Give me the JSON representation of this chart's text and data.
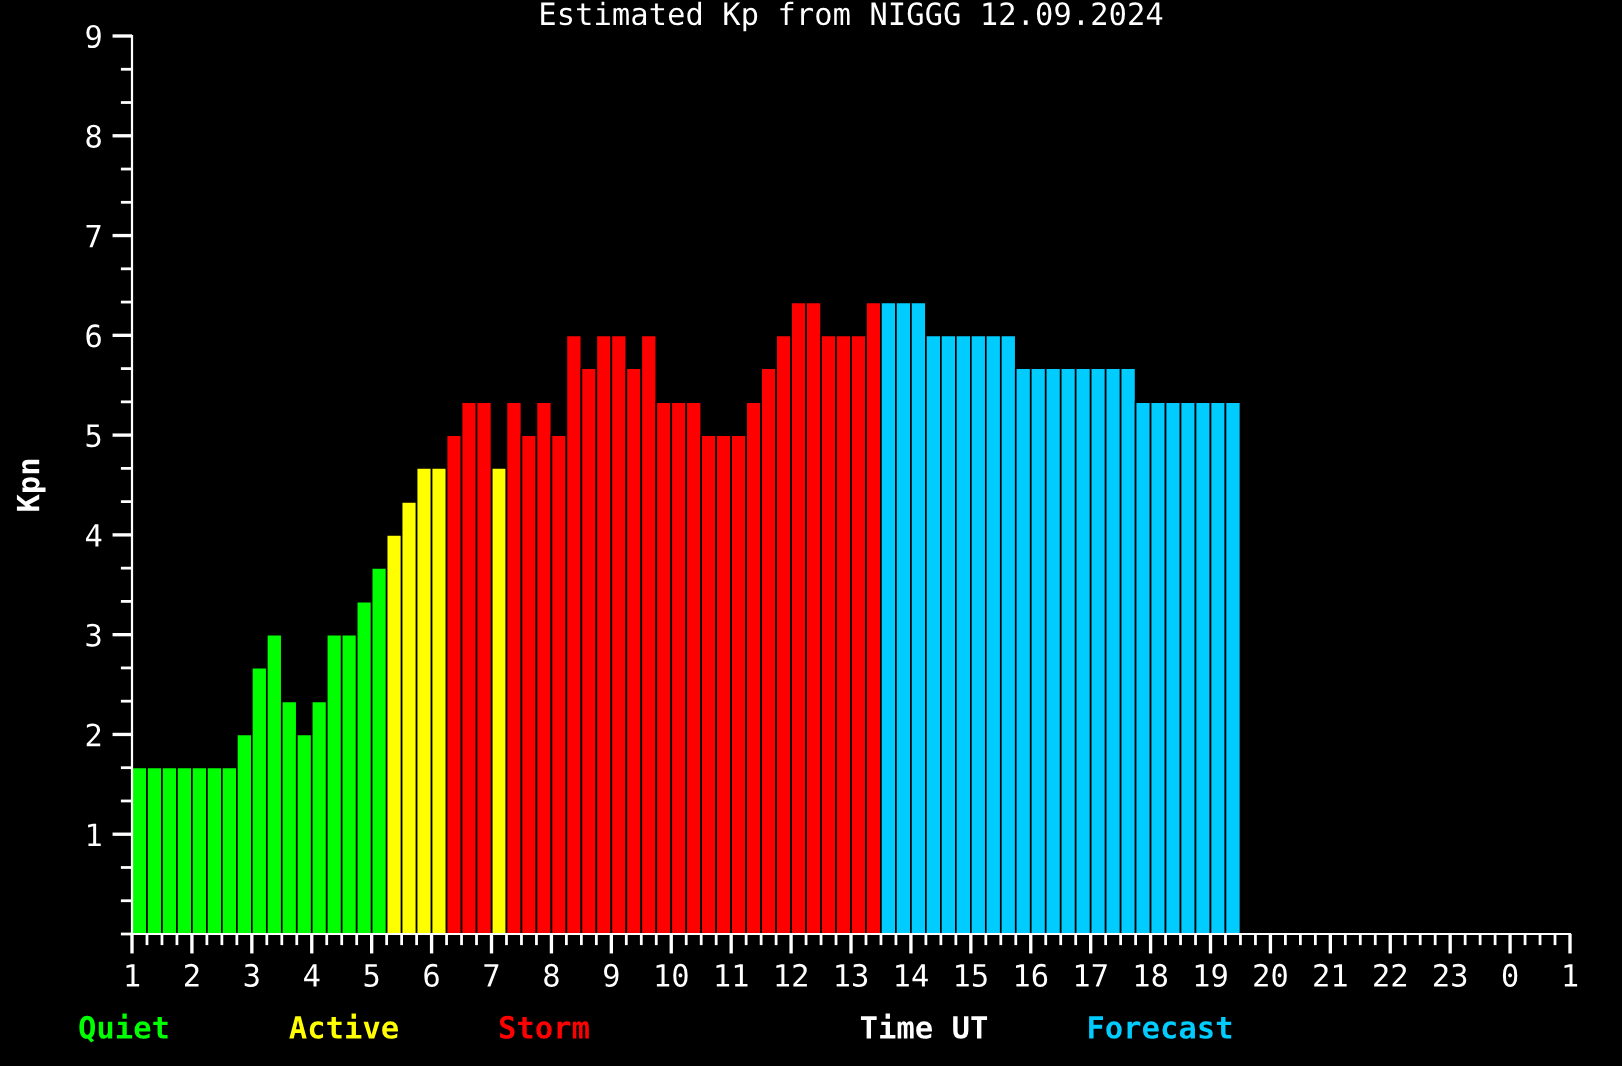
{
  "chart_data": {
    "type": "bar",
    "title": "Estimated Kp from NIGGG 12.09.2024",
    "xlabel": "Time UT",
    "ylabel": "Kpn",
    "xlim": [
      "2024-09-12T01:00",
      "2024-09-13T01:00"
    ],
    "xticks": [
      {
        "value": "2024-09-12T01:00",
        "label": "1"
      },
      {
        "value": "2024-09-12T02:00",
        "label": "2"
      },
      {
        "value": "2024-09-12T03:00",
        "label": "3"
      },
      {
        "value": "2024-09-12T04:00",
        "label": "4"
      },
      {
        "value": "2024-09-12T05:00",
        "label": "5"
      },
      {
        "value": "2024-09-12T06:00",
        "label": "6"
      },
      {
        "value": "2024-09-12T07:00",
        "label": "7"
      },
      {
        "value": "2024-09-12T08:00",
        "label": "8"
      },
      {
        "value": "2024-09-12T09:00",
        "label": "9"
      },
      {
        "value": "2024-09-12T10:00",
        "label": "10"
      },
      {
        "value": "2024-09-12T11:00",
        "label": "11"
      },
      {
        "value": "2024-09-12T12:00",
        "label": "12"
      },
      {
        "value": "2024-09-12T13:00",
        "label": "13"
      },
      {
        "value": "2024-09-12T14:00",
        "label": "14"
      },
      {
        "value": "2024-09-12T15:00",
        "label": "15"
      },
      {
        "value": "2024-09-12T16:00",
        "label": "16"
      },
      {
        "value": "2024-09-12T17:00",
        "label": "17"
      },
      {
        "value": "2024-09-12T18:00",
        "label": "18"
      },
      {
        "value": "2024-09-12T19:00",
        "label": "19"
      },
      {
        "value": "2024-09-12T20:00",
        "label": "20"
      },
      {
        "value": "2024-09-12T21:00",
        "label": "21"
      },
      {
        "value": "2024-09-12T22:00",
        "label": "22"
      },
      {
        "value": "2024-09-12T23:00",
        "label": "23"
      },
      {
        "value": "2024-09-13T00:00",
        "label": "0"
      },
      {
        "value": "2024-09-13T01:00",
        "label": "1"
      }
    ],
    "ylim": [
      0,
      9
    ],
    "yticks": [
      1,
      2,
      3,
      4,
      5,
      6,
      7,
      8,
      9
    ],
    "legend": "bottom",
    "series": [
      {
        "name": "Quiet",
        "color": "#00ff00",
        "x": [
          "2024-09-12T01:00",
          "2024-09-12T01:15",
          "2024-09-12T01:30",
          "2024-09-12T01:45",
          "2024-09-12T02:00",
          "2024-09-12T02:15",
          "2024-09-12T02:30",
          "2024-09-12T02:45",
          "2024-09-12T03:00",
          "2024-09-12T03:15",
          "2024-09-12T03:30",
          "2024-09-12T03:45",
          "2024-09-12T04:00",
          "2024-09-12T04:15",
          "2024-09-12T04:30",
          "2024-09-12T04:45",
          "2024-09-12T05:00"
        ],
        "values": [
          1.67,
          1.67,
          1.67,
          1.67,
          1.67,
          1.67,
          1.67,
          2,
          2.67,
          3,
          2.33,
          2,
          2.33,
          3,
          3,
          3.33,
          3.67
        ]
      },
      {
        "name": "Active",
        "color": "#ffff00",
        "x": [
          "2024-09-12T05:15",
          "2024-09-12T05:30",
          "2024-09-12T05:45",
          "2024-09-12T06:00",
          "2024-09-12T07:00"
        ],
        "values": [
          4,
          4.33,
          4.67,
          4.67,
          4.67
        ]
      },
      {
        "name": "Storm",
        "color": "#ff0000",
        "x": [
          "2024-09-12T06:15",
          "2024-09-12T06:30",
          "2024-09-12T06:45",
          "2024-09-12T07:15",
          "2024-09-12T07:30",
          "2024-09-12T07:45",
          "2024-09-12T08:00",
          "2024-09-12T08:15",
          "2024-09-12T08:30",
          "2024-09-12T08:45",
          "2024-09-12T09:00",
          "2024-09-12T09:15",
          "2024-09-12T09:30",
          "2024-09-12T09:45",
          "2024-09-12T10:00",
          "2024-09-12T10:15",
          "2024-09-12T10:30",
          "2024-09-12T10:45",
          "2024-09-12T11:00",
          "2024-09-12T11:15",
          "2024-09-12T11:30",
          "2024-09-12T11:45",
          "2024-09-12T12:00",
          "2024-09-12T12:15",
          "2024-09-12T12:30",
          "2024-09-12T12:45",
          "2024-09-12T13:00",
          "2024-09-12T13:15"
        ],
        "values": [
          5,
          5.33,
          5.33,
          5.33,
          5,
          5.33,
          5,
          6,
          5.67,
          6,
          6,
          5.67,
          6,
          5.33,
          5.33,
          5.33,
          5,
          5,
          5,
          5.33,
          5.67,
          6,
          6.33,
          6.33,
          6,
          6,
          6,
          6.33
        ]
      },
      {
        "name": "Forecast",
        "color": "#00ccff",
        "x": [
          "2024-09-12T13:30",
          "2024-09-12T13:45",
          "2024-09-12T14:00",
          "2024-09-12T14:15",
          "2024-09-12T14:30",
          "2024-09-12T14:45",
          "2024-09-12T15:00",
          "2024-09-12T15:15",
          "2024-09-12T15:30",
          "2024-09-12T15:45",
          "2024-09-12T16:00",
          "2024-09-12T16:15",
          "2024-09-12T16:30",
          "2024-09-12T16:45",
          "2024-09-12T17:00",
          "2024-09-12T17:15",
          "2024-09-12T17:30",
          "2024-09-12T17:45",
          "2024-09-12T18:00",
          "2024-09-12T18:15",
          "2024-09-12T18:30",
          "2024-09-12T18:45",
          "2024-09-12T19:00",
          "2024-09-12T19:15"
        ],
        "values": [
          6.33,
          6.33,
          6.33,
          6,
          6,
          6,
          6,
          6,
          6,
          5.67,
          5.67,
          5.67,
          5.67,
          5.67,
          5.67,
          5.67,
          5.67,
          5.33,
          5.33,
          5.33,
          5.33,
          5.33,
          5.33,
          5.33
        ]
      }
    ]
  }
}
